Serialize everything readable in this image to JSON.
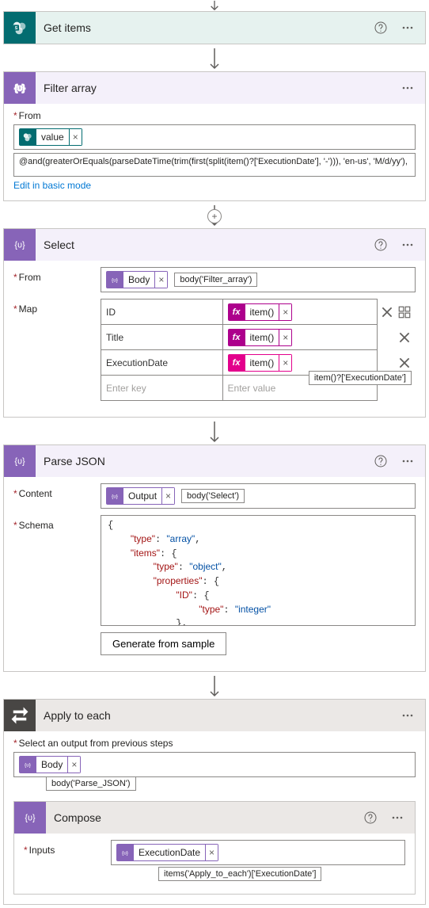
{
  "colors": {
    "sharepoint": "#036c70",
    "dataops_purple": "#8764b8",
    "dataops_bg": "#f4f0fa",
    "control_grey": "#484644",
    "fx_magenta": "#ad008c",
    "fx_pink": "#e3008c",
    "border": "#8a8886",
    "link": "#0078d4"
  },
  "flow": {
    "get_items": {
      "title": "Get items"
    },
    "filter_array": {
      "title": "Filter array",
      "from_label": "From",
      "from_token": "value",
      "expression": "@and(greaterOrEquals(parseDateTime(trim(first(split(item()?['ExecutionDate'], '-'))), 'en-us', 'M/d/yy'),",
      "edit_link": "Edit in basic mode"
    },
    "select": {
      "title": "Select",
      "from_label": "From",
      "from_token": "Body",
      "from_tooltip": "body('Filter_array')",
      "map_label": "Map",
      "rows": [
        {
          "key": "ID",
          "val_token": "item()"
        },
        {
          "key": "Title",
          "val_token": "item()"
        },
        {
          "key": "ExecutionDate",
          "val_token": "item()",
          "val_tooltip": "item()?['ExecutionDate']"
        }
      ],
      "placeholder_key": "Enter key",
      "placeholder_val": "Enter value"
    },
    "parse_json": {
      "title": "Parse JSON",
      "content_label": "Content",
      "content_token": "Output",
      "content_tooltip": "body('Select')",
      "schema_label": "Schema",
      "schema_raw": "{\n    \"type\": \"array\",\n    \"items\": {\n        \"type\": \"object\",\n        \"properties\": {\n            \"ID\": {\n                \"type\": \"integer\"\n            },\n            \"Title\": {\n                \"type\": \"string\"",
      "generate_btn": "Generate from sample"
    },
    "apply_each": {
      "title": "Apply to each",
      "select_label": "Select an output from previous steps",
      "token": "Body",
      "token_tooltip": "body('Parse_JSON')",
      "compose": {
        "title": "Compose",
        "inputs_label": "Inputs",
        "token": "ExecutionDate",
        "token_tooltip": "items('Apply_to_each')['ExecutionDate']"
      }
    }
  }
}
